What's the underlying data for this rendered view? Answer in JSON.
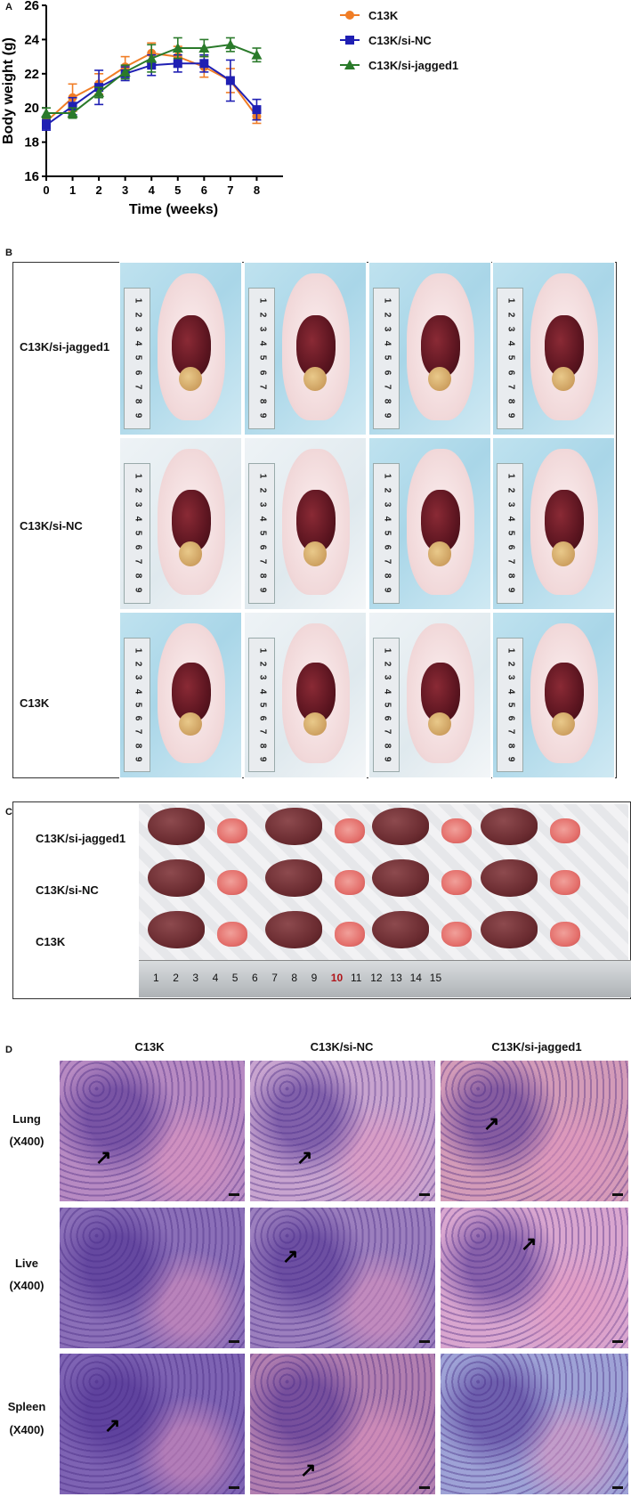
{
  "panels": {
    "A": {
      "letter": "A",
      "chart_data": {
        "type": "line",
        "xlabel": "Time (weeks)",
        "ylabel": "Body weight (g)",
        "x": [
          0,
          1,
          2,
          3,
          4,
          5,
          6,
          7,
          8
        ],
        "xlim": [
          0,
          9
        ],
        "ylim": [
          16,
          26
        ],
        "xticks": [
          "0",
          "1",
          "2",
          "3",
          "4",
          "5",
          "6",
          "7",
          "8"
        ],
        "yticks": [
          "16",
          "18",
          "20",
          "22",
          "24",
          "26"
        ],
        "grid": false,
        "legend_position": "top-right",
        "series": [
          {
            "name": "C13K",
            "color": "#f07d26",
            "marker": "circle",
            "values": [
              19.2,
              20.6,
              21.4,
              22.4,
              23.2,
              23.0,
              22.4,
              21.6,
              19.5
            ],
            "errors": [
              0.3,
              0.8,
              0.6,
              0.6,
              0.6,
              0.6,
              0.6,
              0.7,
              0.4
            ]
          },
          {
            "name": "C13K/si-NC",
            "color": "#1f1fb3",
            "marker": "square",
            "values": [
              19.0,
              20.1,
              21.2,
              22.0,
              22.5,
              22.6,
              22.6,
              21.6,
              19.9
            ],
            "errors": [
              0.3,
              0.5,
              1.0,
              0.4,
              0.6,
              0.5,
              0.5,
              1.2,
              0.6
            ]
          },
          {
            "name": "C13K/si-jagged1",
            "color": "#2a7a2a",
            "marker": "triangle",
            "values": [
              19.7,
              19.7,
              20.9,
              22.1,
              22.9,
              23.5,
              23.5,
              23.7,
              23.1
            ],
            "errors": [
              0.3,
              0.3,
              0.3,
              0.4,
              0.8,
              0.6,
              0.5,
              0.4,
              0.4
            ]
          }
        ]
      }
    },
    "B": {
      "letter": "B",
      "rows": [
        {
          "label": "C13K/si-jagged1"
        },
        {
          "label": "C13K/si-NC"
        },
        {
          "label": "C13K"
        }
      ],
      "ruler_numbers": [
        "1",
        "2",
        "3",
        "4",
        "5",
        "6",
        "7",
        "8",
        "9"
      ]
    },
    "C": {
      "letter": "C",
      "rows": [
        {
          "label": "C13K/si-jagged1"
        },
        {
          "label": "C13K/si-NC"
        },
        {
          "label": "C13K"
        }
      ],
      "ruler_numbers": [
        "1",
        "2",
        "3",
        "4",
        "5",
        "6",
        "7",
        "8",
        "9",
        "10",
        "11",
        "12",
        "13",
        "14",
        "15"
      ]
    },
    "D": {
      "letter": "D",
      "columns": [
        "C13K",
        "C13K/si-NC",
        "C13K/si-jagged1"
      ],
      "rows": [
        {
          "tissue": "Lung",
          "mag": "(X400)"
        },
        {
          "tissue": "Live",
          "mag": "(X400)"
        },
        {
          "tissue": "Spleen",
          "mag": "(X400)"
        }
      ]
    }
  },
  "colors": {
    "c13k": "#f07d26",
    "si_nc": "#1f1fb3",
    "si_jagged1": "#2a7a2a",
    "he_purple": "#6a4fa8",
    "he_pink": "#e7a7c9"
  }
}
